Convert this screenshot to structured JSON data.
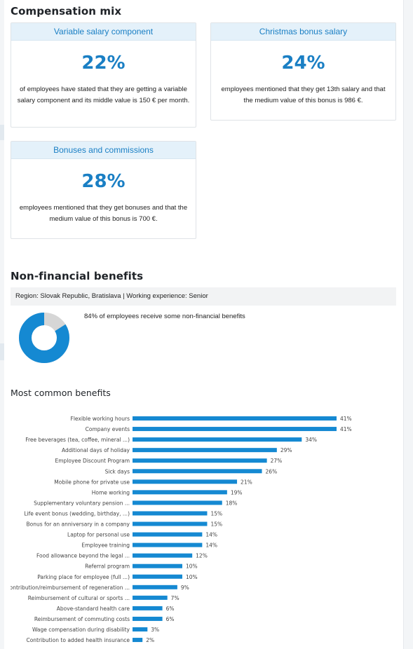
{
  "compensation": {
    "title": "Compensation mix",
    "cards": [
      {
        "header": "Variable salary component",
        "percent": "22%",
        "text": "of employees have stated that they are getting a variable salary component and its middle value is 150 € per month."
      },
      {
        "header": "Christmas bonus salary",
        "percent": "24%",
        "text": "employees mentioned that they get 13th salary and that the medium value of this bonus is 986 €."
      },
      {
        "header": "Bonuses and commissions",
        "percent": "28%",
        "text": "employees mentioned that they get bonuses and that the medium value of this bonus is 700 €."
      }
    ]
  },
  "benefits": {
    "title": "Non-financial benefits",
    "region": "Region: Slovak Republic, Bratislava | Working experience: Senior",
    "share_percent": 84,
    "share_text": "84% of employees receive some non-financial benefits",
    "colors": {
      "primary": "#1589d2",
      "secondary": "#d6d6d6"
    }
  },
  "chart_data": {
    "type": "bar",
    "orientation": "horizontal",
    "title": "Most common benefits",
    "categories": [
      "Flexible working hours",
      "Company events",
      "Free beverages (tea, coffee, mineral ...)",
      "Additional days of holiday",
      "Employee Discount Program",
      "Sick days",
      "Mobile phone for private use",
      "Home working",
      "Supplementary voluntary pension ...",
      "Life event bonus (wedding, birthday, ...)",
      "Bonus for an anniversary in a company",
      "Laptop for personal use",
      "Employee training",
      "Food allowance beyond the legal ...",
      "Referral program",
      "Parking place for employee (full ...)",
      "Contribution/reimbursement of regeneration ...",
      "Reimbursement of cultural or sports ...",
      "Above-standard health care",
      "Reimbursement of commuting costs",
      "Wage compensation during disability",
      "Contribution to added health insurance"
    ],
    "values": [
      41,
      41,
      34,
      29,
      27,
      26,
      21,
      19,
      18,
      15,
      15,
      14,
      14,
      12,
      10,
      10,
      9,
      7,
      6,
      6,
      3,
      2
    ],
    "value_suffix": "%",
    "xlim": [
      0,
      41
    ],
    "bar_color": "#1589d2",
    "grid": false
  }
}
